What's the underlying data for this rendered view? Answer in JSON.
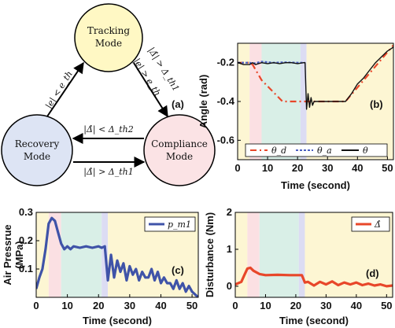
{
  "diagram": {
    "tag": "(a)",
    "nodes": [
      {
        "id": "tracking",
        "line1": "Tracking",
        "line2": "Mode",
        "color": "#fff8c4"
      },
      {
        "id": "recovery",
        "line1": "Recovery",
        "line2": "Mode",
        "color": "#dde4f4"
      },
      {
        "id": "compliance",
        "line1": "Compliance",
        "line2": "Mode",
        "color": "#fbe3e5"
      }
    ],
    "edges": {
      "rec_to_track": "|e| < e_th",
      "track_to_comp_a": "|Δ̂| > Δ_th1",
      "track_to_comp_b": "|e| > e_th",
      "comp_to_rec": "|Δ̂| < Δ_th2",
      "rec_to_comp": "|Δ̂| > Δ_th1"
    }
  },
  "chart_data": [
    {
      "id": "b",
      "type": "line",
      "tag": "(b)",
      "xlabel": "Time (second)",
      "ylabel": "Angle (rad)",
      "xlim": [
        0,
        52
      ],
      "ylim": [
        -0.7,
        -0.1
      ],
      "xticks": [
        0,
        10,
        20,
        30,
        40,
        50
      ],
      "yticks": [
        -0.2,
        -0.4,
        -0.6
      ],
      "yticklabels": [
        "-0.2",
        "-0.4",
        "-0.6"
      ],
      "bands": [
        {
          "x0": 0,
          "x1": 4,
          "color": "#fdf6d3"
        },
        {
          "x0": 4,
          "x1": 8,
          "color": "#fbe0e3"
        },
        {
          "x0": 8,
          "x1": 21,
          "color": "#d9efe7"
        },
        {
          "x0": 21,
          "x1": 23,
          "color": "#dcdcf3"
        },
        {
          "x0": 23,
          "x1": 52,
          "color": "#fdf6d3"
        }
      ],
      "legend": [
        "θ_d",
        "θ_a",
        "θ"
      ],
      "series": [
        {
          "name": "θ_d",
          "color": "#e8472a",
          "dash": "8,4,2,4",
          "x": [
            0,
            4,
            5,
            8,
            15,
            22.5,
            23,
            36,
            52
          ],
          "y": [
            -0.2,
            -0.2,
            -0.21,
            -0.29,
            -0.4,
            -0.4,
            -0.4,
            -0.4,
            -0.11
          ]
        },
        {
          "name": "θ_a",
          "color": "#4b5fc0",
          "dash": "3,2",
          "x": [
            0,
            4,
            5,
            8,
            12,
            16,
            20,
            22.5
          ],
          "y": [
            -0.2,
            -0.2,
            -0.205,
            -0.195,
            -0.2,
            -0.198,
            -0.2,
            -0.2
          ]
        },
        {
          "name": "θ",
          "color": "#111111",
          "dash": "",
          "x": [
            0,
            2,
            4,
            5,
            6,
            8,
            10,
            12,
            14,
            16,
            18,
            20,
            22,
            22.5,
            23,
            23.5,
            24,
            24.5,
            25,
            25.5,
            26,
            27,
            28,
            30,
            32,
            34,
            36,
            38,
            40,
            42,
            44,
            46,
            48,
            50,
            52
          ],
          "y": [
            -0.2,
            -0.21,
            -0.21,
            -0.2,
            -0.21,
            -0.2,
            -0.205,
            -0.2,
            -0.205,
            -0.2,
            -0.2,
            -0.205,
            -0.2,
            -0.2,
            -0.44,
            -0.36,
            -0.43,
            -0.38,
            -0.42,
            -0.4,
            -0.4,
            -0.4,
            -0.4,
            -0.4,
            -0.4,
            -0.4,
            -0.4,
            -0.36,
            -0.31,
            -0.28,
            -0.24,
            -0.2,
            -0.17,
            -0.14,
            -0.12
          ]
        }
      ]
    },
    {
      "id": "c",
      "type": "line",
      "tag": "(c)",
      "xlabel": "Time (second)",
      "ylabel": "Air Pressrue (MPa)",
      "ylabel_line1": "Air Pressrue",
      "ylabel_line2": "(MPa)",
      "xlim": [
        0,
        52
      ],
      "ylim": [
        0,
        0.3
      ],
      "xticks": [
        0,
        10,
        20,
        30,
        40,
        50
      ],
      "yticks": [
        0.3,
        0.2,
        0.1
      ],
      "yticklabels": [
        "0.3",
        "0.2",
        "0.1"
      ],
      "bands": [
        {
          "x0": 0,
          "x1": 4,
          "color": "#fdf6d3"
        },
        {
          "x0": 4,
          "x1": 8,
          "color": "#fbe0e3"
        },
        {
          "x0": 8,
          "x1": 21,
          "color": "#d9efe7"
        },
        {
          "x0": 21,
          "x1": 23,
          "color": "#dcdcf3"
        },
        {
          "x0": 23,
          "x1": 52,
          "color": "#fdf6d3"
        }
      ],
      "legend": [
        "p_m1"
      ],
      "series": [
        {
          "name": "p_m1",
          "color": "#3f53a8",
          "x": [
            0,
            1,
            2,
            3,
            4,
            5,
            6,
            7,
            8,
            9,
            10,
            11,
            12,
            14,
            16,
            18,
            20,
            21,
            22,
            23,
            24,
            25,
            26,
            27,
            28,
            29,
            30,
            31,
            32,
            33,
            34,
            35,
            36,
            37,
            38,
            39,
            40,
            41,
            42,
            43,
            44,
            45,
            46,
            47,
            48,
            49,
            50,
            51,
            52
          ],
          "y": [
            0.03,
            0.07,
            0.1,
            0.17,
            0.26,
            0.28,
            0.27,
            0.23,
            0.19,
            0.17,
            0.18,
            0.17,
            0.18,
            0.175,
            0.18,
            0.175,
            0.18,
            0.175,
            0.18,
            0.06,
            0.15,
            0.07,
            0.13,
            0.09,
            0.12,
            0.06,
            0.11,
            0.08,
            0.1,
            0.06,
            0.09,
            0.07,
            0.07,
            0.1,
            0.06,
            0.09,
            0.05,
            0.07,
            0.05,
            0.05,
            0.03,
            0.06,
            0.03,
            0.05,
            0.02,
            0.04,
            0.02,
            0.01,
            0.0
          ]
        }
      ]
    },
    {
      "id": "d",
      "type": "line",
      "tag": "(d)",
      "xlabel": "Time (second)",
      "ylabel": "Disturbance (Nm)",
      "xlim": [
        0,
        52
      ],
      "ylim": [
        -0.3,
        2
      ],
      "xticks": [
        0,
        10,
        20,
        30,
        40,
        50
      ],
      "yticks": [
        2,
        1,
        0
      ],
      "yticklabels": [
        "2",
        "1",
        "0"
      ],
      "bands": [
        {
          "x0": 0,
          "x1": 4,
          "color": "#fdf6d3"
        },
        {
          "x0": 4,
          "x1": 8,
          "color": "#fbe0e3"
        },
        {
          "x0": 8,
          "x1": 21,
          "color": "#d9efe7"
        },
        {
          "x0": 21,
          "x1": 23,
          "color": "#dcdcf3"
        },
        {
          "x0": 23,
          "x1": 52,
          "color": "#fdf6d3"
        }
      ],
      "legend": [
        "Δ̂"
      ],
      "series": [
        {
          "name": "Δ̂",
          "color": "#e8472a",
          "x": [
            0,
            2,
            3,
            4,
            5,
            6,
            8,
            10,
            14,
            18,
            22,
            23,
            24,
            26,
            28,
            30,
            32,
            34,
            36,
            38,
            40,
            42,
            44,
            46,
            48,
            50,
            52
          ],
          "y": [
            0.05,
            0.12,
            0.3,
            0.48,
            0.5,
            0.42,
            0.33,
            0.3,
            0.31,
            0.3,
            0.3,
            0.1,
            0.12,
            0.02,
            0.12,
            0.05,
            0.13,
            0.03,
            0.1,
            0.05,
            0.1,
            0.03,
            0.07,
            0.02,
            0.05,
            0.0,
            0.02
          ]
        }
      ]
    }
  ]
}
